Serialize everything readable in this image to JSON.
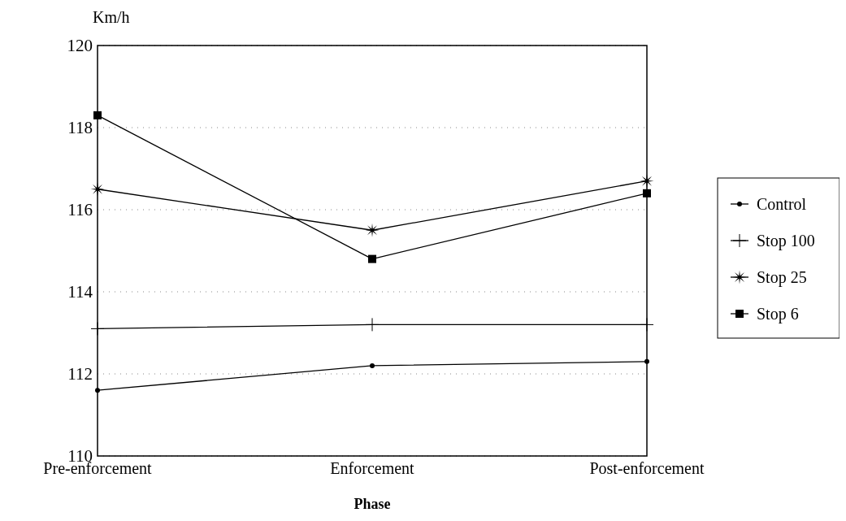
{
  "chart_data": {
    "type": "line",
    "xlabel": "Phase",
    "ylabel": "Km/h",
    "categories": [
      "Pre-enforcement",
      "Enforcement",
      "Post-enforcement"
    ],
    "series": [
      {
        "name": "Control",
        "color": "#000000",
        "marker": "circle",
        "values": [
          111.6,
          112.2,
          112.3
        ]
      },
      {
        "name": "Stop 100",
        "color": "#000000",
        "marker": "cross",
        "values": [
          113.1,
          113.2,
          113.2
        ]
      },
      {
        "name": "Stop 25",
        "color": "#000000",
        "marker": "star",
        "values": [
          116.5,
          115.5,
          116.7
        ]
      },
      {
        "name": "Stop 6",
        "color": "#000000",
        "marker": "square",
        "values": [
          118.3,
          114.8,
          116.4
        ]
      }
    ],
    "ylim": [
      110,
      120
    ],
    "yticks": [
      110,
      112,
      114,
      116,
      118,
      120
    ],
    "grid": "y",
    "legend": "right"
  }
}
